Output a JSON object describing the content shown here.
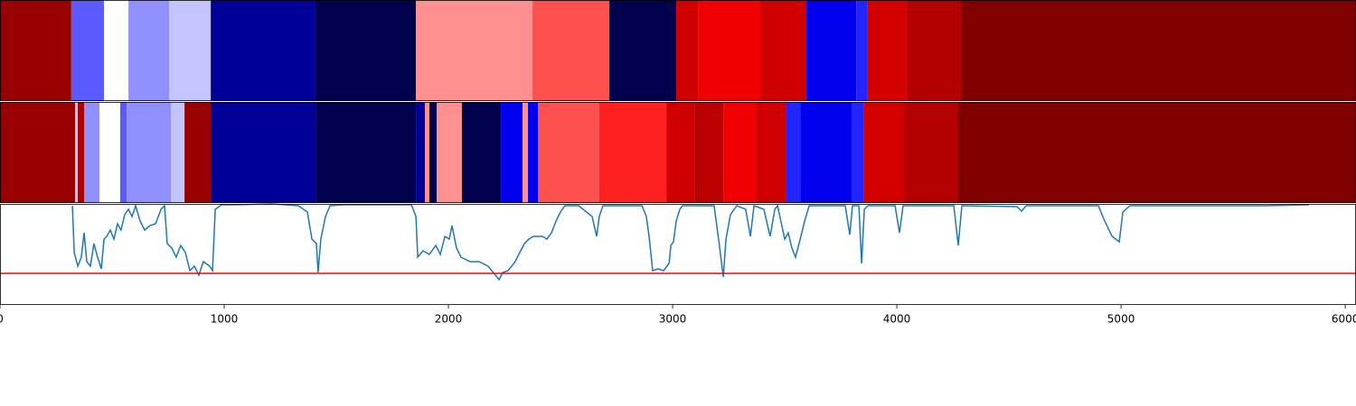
{
  "chart_data": [
    {
      "type": "band",
      "xlim": [
        0,
        6048
      ],
      "segments": [
        {
          "start": 0,
          "end": 318,
          "color": "#990000"
        },
        {
          "start": 318,
          "end": 464,
          "color": "#5a5aff"
        },
        {
          "start": 464,
          "end": 573,
          "color": "#ffffff"
        },
        {
          "start": 573,
          "end": 754,
          "color": "#9090ff"
        },
        {
          "start": 754,
          "end": 940,
          "color": "#c4c4ff"
        },
        {
          "start": 940,
          "end": 1407,
          "color": "#000099"
        },
        {
          "start": 1407,
          "end": 1855,
          "color": "#00004c"
        },
        {
          "start": 1855,
          "end": 2375,
          "color": "#ff9090"
        },
        {
          "start": 2375,
          "end": 2718,
          "color": "#ff5050"
        },
        {
          "start": 2718,
          "end": 3016,
          "color": "#00004c"
        },
        {
          "start": 3016,
          "end": 3113,
          "color": "#d00000"
        },
        {
          "start": 3113,
          "end": 3391,
          "color": "#f00000"
        },
        {
          "start": 3391,
          "end": 3597,
          "color": "#d00000"
        },
        {
          "start": 3597,
          "end": 3819,
          "color": "#0000ee"
        },
        {
          "start": 3819,
          "end": 3867,
          "color": "#2424ff"
        },
        {
          "start": 3867,
          "end": 4044,
          "color": "#d40000"
        },
        {
          "start": 4044,
          "end": 4286,
          "color": "#b40000"
        },
        {
          "start": 4286,
          "end": 6048,
          "color": "#800000"
        }
      ]
    },
    {
      "type": "band",
      "xlim": [
        0,
        6048
      ],
      "segments": [
        {
          "start": 0,
          "end": 335,
          "color": "#990000"
        },
        {
          "start": 335,
          "end": 347,
          "color": "#c4c4ff"
        },
        {
          "start": 347,
          "end": 375,
          "color": "#aa0000"
        },
        {
          "start": 375,
          "end": 444,
          "color": "#9090ff"
        },
        {
          "start": 444,
          "end": 536,
          "color": "#ffffff"
        },
        {
          "start": 536,
          "end": 565,
          "color": "#5a5aff"
        },
        {
          "start": 565,
          "end": 762,
          "color": "#9090ff"
        },
        {
          "start": 762,
          "end": 823,
          "color": "#c4c4ff"
        },
        {
          "start": 823,
          "end": 940,
          "color": "#990000"
        },
        {
          "start": 940,
          "end": 1411,
          "color": "#000099"
        },
        {
          "start": 1411,
          "end": 1855,
          "color": "#00004c"
        },
        {
          "start": 1855,
          "end": 1895,
          "color": "#000099"
        },
        {
          "start": 1895,
          "end": 1915,
          "color": "#ff9090"
        },
        {
          "start": 1915,
          "end": 1948,
          "color": "#00004c"
        },
        {
          "start": 1948,
          "end": 2060,
          "color": "#ff9090"
        },
        {
          "start": 2060,
          "end": 2234,
          "color": "#00004c"
        },
        {
          "start": 2234,
          "end": 2331,
          "color": "#0000ee"
        },
        {
          "start": 2331,
          "end": 2355,
          "color": "#ff9090"
        },
        {
          "start": 2355,
          "end": 2399,
          "color": "#0000ee"
        },
        {
          "start": 2399,
          "end": 2673,
          "color": "#ff5050"
        },
        {
          "start": 2673,
          "end": 2972,
          "color": "#ff2020"
        },
        {
          "start": 2972,
          "end": 3097,
          "color": "#d00000"
        },
        {
          "start": 3097,
          "end": 3226,
          "color": "#bb0000"
        },
        {
          "start": 3226,
          "end": 3371,
          "color": "#f00000"
        },
        {
          "start": 3371,
          "end": 3504,
          "color": "#d00000"
        },
        {
          "start": 3504,
          "end": 3569,
          "color": "#2424ff"
        },
        {
          "start": 3569,
          "end": 3798,
          "color": "#0000ee"
        },
        {
          "start": 3798,
          "end": 3851,
          "color": "#2424ff"
        },
        {
          "start": 3851,
          "end": 4032,
          "color": "#d40000"
        },
        {
          "start": 4032,
          "end": 4274,
          "color": "#b40000"
        },
        {
          "start": 4274,
          "end": 6048,
          "color": "#800000"
        }
      ]
    },
    {
      "type": "line",
      "xlim": [
        0,
        6048
      ],
      "ylim": [
        0,
        1.12
      ],
      "xticks": [
        0,
        1000,
        2000,
        3000,
        4000,
        5000,
        6000
      ],
      "color": "#1f77b4",
      "threshold": 0.35,
      "threshold_color": "#ff0000",
      "x": [
        323,
        331,
        347,
        363,
        375,
        387,
        403,
        419,
        435,
        452,
        464,
        476,
        492,
        508,
        524,
        540,
        556,
        573,
        589,
        605,
        625,
        645,
        669,
        694,
        718,
        734,
        746,
        766,
        786,
        806,
        827,
        847,
        867,
        887,
        907,
        935,
        948,
        960,
        988,
        1048,
        1210,
        1331,
        1371,
        1391,
        1411,
        1419,
        1431,
        1452,
        1472,
        1532,
        1835,
        1855,
        1863,
        1887,
        1915,
        1944,
        1964,
        1984,
        2004,
        2016,
        2036,
        2056,
        2097,
        2137,
        2177,
        2210,
        2226,
        2242,
        2266,
        2298,
        2318,
        2339,
        2359,
        2379,
        2399,
        2419,
        2439,
        2460,
        2480,
        2500,
        2520,
        2581,
        2641,
        2661,
        2673,
        2689,
        2863,
        2883,
        2895,
        2911,
        2935,
        2960,
        2984,
        2992,
        3004,
        3016,
        3032,
        3044,
        3185,
        3205,
        3226,
        3238,
        3258,
        3286,
        3326,
        3347,
        3363,
        3407,
        3435,
        3456,
        3468,
        3500,
        3516,
        3532,
        3548,
        3569,
        3589,
        3609,
        3770,
        3790,
        3802,
        3831,
        3843,
        3855,
        3871,
        3992,
        4012,
        4028,
        4254,
        4274,
        4290,
        4536,
        4556,
        4577,
        4899,
        4927,
        4960,
        4992,
        5008,
        5040,
        5242,
        5645,
        5839
      ],
      "values": [
        1.1,
        0.58,
        0.43,
        0.53,
        0.8,
        0.48,
        0.43,
        0.68,
        0.53,
        0.4,
        0.73,
        0.76,
        0.83,
        0.73,
        0.9,
        0.83,
        1.0,
        1.06,
        0.98,
        1.1,
        0.93,
        0.83,
        0.88,
        0.9,
        1.06,
        1.1,
        0.68,
        0.63,
        0.53,
        0.66,
        0.58,
        0.38,
        0.43,
        0.33,
        0.48,
        0.43,
        0.38,
        1.06,
        1.11,
        1.11,
        1.12,
        1.1,
        1.03,
        0.73,
        0.68,
        0.36,
        0.73,
        0.98,
        1.1,
        1.11,
        1.11,
        0.98,
        0.53,
        0.6,
        0.56,
        0.66,
        0.56,
        0.76,
        0.73,
        0.88,
        0.63,
        0.53,
        0.48,
        0.48,
        0.43,
        0.33,
        0.28,
        0.36,
        0.38,
        0.48,
        0.58,
        0.68,
        0.73,
        0.76,
        0.76,
        0.76,
        0.73,
        0.8,
        0.93,
        1.03,
        1.1,
        1.1,
        0.98,
        0.76,
        0.98,
        1.1,
        1.1,
        0.98,
        0.76,
        0.38,
        0.4,
        0.38,
        0.46,
        0.66,
        0.7,
        0.93,
        1.06,
        1.1,
        1.1,
        0.73,
        0.31,
        0.73,
        1.0,
        1.1,
        1.06,
        0.76,
        1.1,
        1.06,
        0.76,
        1.06,
        1.1,
        0.73,
        0.8,
        0.63,
        0.53,
        0.73,
        0.93,
        1.1,
        1.1,
        0.78,
        1.1,
        1.1,
        0.46,
        1.06,
        1.1,
        1.1,
        0.8,
        1.1,
        1.1,
        0.66,
        1.1,
        1.09,
        1.04,
        1.1,
        1.1,
        0.93,
        0.76,
        0.7,
        1.03,
        1.1,
        1.1,
        1.1,
        1.11
      ]
    }
  ]
}
